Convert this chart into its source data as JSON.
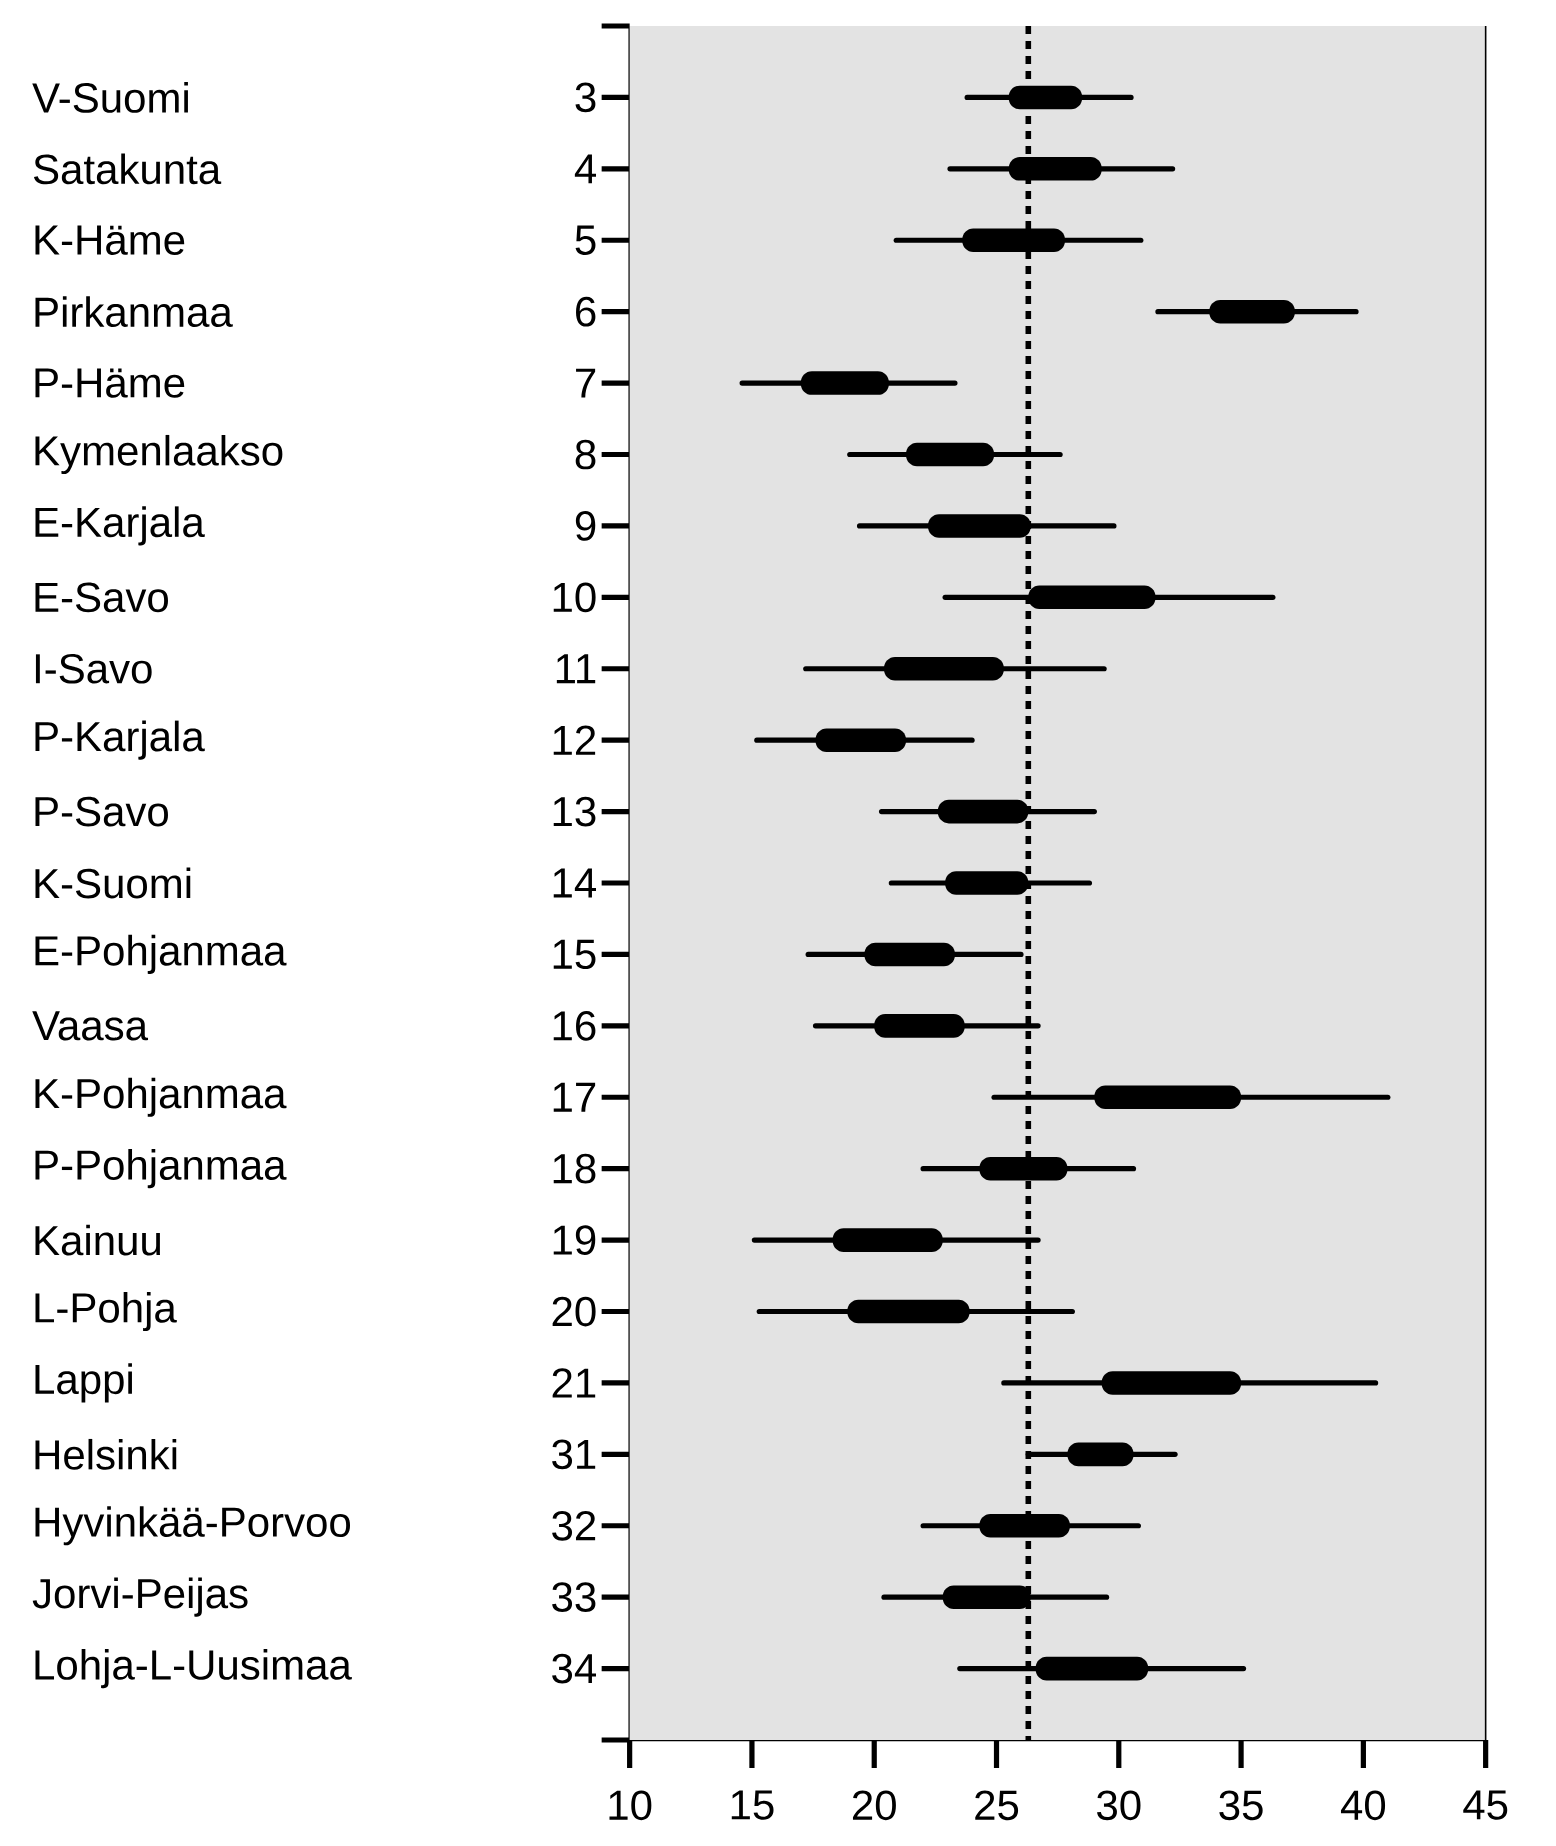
{
  "chart_data": {
    "type": "bar",
    "orientation": "horizontal",
    "categories": [
      "V-Suomi",
      "Satakunta",
      "K-Häme",
      "Pirkanmaa",
      "P-Häme",
      "Kymenlaakso",
      "E-Karjala",
      "E-Savo",
      "I-Savo",
      "P-Karjala",
      "P-Savo",
      "K-Suomi",
      "E-Pohjanmaa",
      "Vaasa",
      "K-Pohjanmaa",
      "P-Pohjanmaa",
      "Kainuu",
      "L-Pohja",
      "Lappi",
      "Helsinki",
      "Hyvinkää-Porvoo",
      "Jorvi-Peijas",
      "Lohja-L-Uusimaa"
    ],
    "base": [
      25.5,
      25.5,
      23.6,
      33.7,
      17.0,
      21.3,
      22.2,
      26.3,
      20.4,
      17.6,
      22.6,
      22.9,
      19.6,
      20.0,
      29.0,
      24.3,
      18.3,
      18.9,
      29.3,
      27.9,
      24.3,
      22.8,
      26.6
    ],
    "values": [
      3.0,
      3.8,
      4.2,
      3.5,
      3.6,
      3.6,
      4.2,
      5.2,
      4.9,
      3.7,
      3.7,
      3.4,
      3.7,
      3.7,
      6.0,
      3.6,
      4.5,
      5.0,
      5.7,
      2.7,
      3.7,
      3.6,
      4.6
    ],
    "errors": [
      [
        23.8,
        30.5
      ],
      [
        23.1,
        32.2
      ],
      [
        20.9,
        30.9
      ],
      [
        31.6,
        39.7
      ],
      [
        14.6,
        23.3
      ],
      [
        19.0,
        27.6
      ],
      [
        19.4,
        29.8
      ],
      [
        22.9,
        36.3
      ],
      [
        17.2,
        29.4
      ],
      [
        15.2,
        24.0
      ],
      [
        20.3,
        29.0
      ],
      [
        20.7,
        28.8
      ],
      [
        17.3,
        26.0
      ],
      [
        17.6,
        26.7
      ],
      [
        24.9,
        41.0
      ],
      [
        22.0,
        30.6
      ],
      [
        15.1,
        26.7
      ],
      [
        15.3,
        28.1
      ],
      [
        25.3,
        40.5
      ],
      [
        26.3,
        32.3
      ],
      [
        22.0,
        30.8
      ],
      [
        20.4,
        29.5
      ],
      [
        23.5,
        35.1
      ]
    ],
    "color": "#000000",
    "xlim": [
      10,
      45
    ],
    "xticks": [
      10,
      15,
      20,
      25,
      30,
      35,
      40,
      45
    ],
    "ref_lines": [
      {
        "axis": "x",
        "value": 26.3,
        "line_style": "dotted",
        "color": "#000000"
      }
    ],
    "annotations": [
      "3",
      "4",
      "5",
      "6",
      "7",
      "8",
      "9",
      "10",
      "11",
      "12",
      "13",
      "14",
      "15",
      "16",
      "17",
      "18",
      "19",
      "20",
      "21",
      "31",
      "32",
      "33",
      "34"
    ]
  }
}
